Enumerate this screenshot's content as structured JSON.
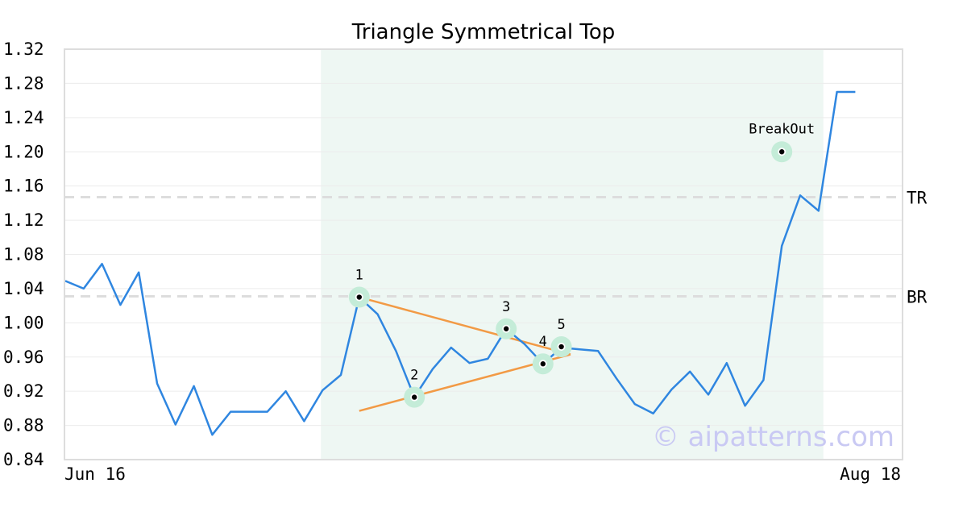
{
  "chart_data": {
    "type": "line",
    "title": "Triangle Symmetrical Top",
    "xlabel": "",
    "ylabel": "",
    "x_start_label": "Jun 16",
    "x_end_label": "Aug 18",
    "ylim": [
      0.84,
      1.32
    ],
    "yticks": [
      "0.84",
      "0.88",
      "0.92",
      "0.96",
      "1.00",
      "1.04",
      "1.08",
      "1.12",
      "1.16",
      "1.20",
      "1.24",
      "1.28",
      "1.32"
    ],
    "grid": true,
    "series": [
      {
        "color": "#2f86e0",
        "values": [
          1.049,
          1.04,
          1.069,
          1.021,
          1.059,
          0.929,
          0.881,
          0.926,
          0.869,
          0.896,
          0.896,
          0.896,
          0.92,
          0.885,
          0.921,
          0.939,
          1.03,
          1.01,
          0.967,
          0.913,
          0.946,
          0.971,
          0.953,
          0.958,
          0.993,
          0.975,
          0.952,
          0.971,
          0.969,
          0.967,
          0.935,
          0.905,
          0.894,
          0.922,
          0.943,
          0.916,
          0.953,
          0.903,
          0.933,
          1.09,
          1.149,
          1.131,
          1.27,
          1.27
        ]
      }
    ],
    "highlight_range": [
      14,
      41
    ],
    "highlight_color": "#eef7f3",
    "reference_lines": [
      {
        "label": "TR",
        "value": 1.147
      },
      {
        "label": "BR",
        "value": 1.031
      }
    ],
    "trend_lines": [
      {
        "from": [
          16,
          1.03
        ],
        "to": [
          27.5,
          0.963
        ]
      },
      {
        "from": [
          16,
          0.897
        ],
        "to": [
          27.5,
          0.963
        ]
      }
    ],
    "trend_color": "#f29a45",
    "pattern_points": [
      {
        "label": "1",
        "x": 16,
        "y": 1.03
      },
      {
        "label": "2",
        "x": 19,
        "y": 0.913
      },
      {
        "label": "3",
        "x": 24,
        "y": 0.993
      },
      {
        "label": "4",
        "x": 26,
        "y": 0.952
      },
      {
        "label": "5",
        "x": 27,
        "y": 0.972
      },
      {
        "label": "BreakOut",
        "x": 39,
        "y": 1.2
      }
    ],
    "watermark": "© aipatterns.com"
  }
}
